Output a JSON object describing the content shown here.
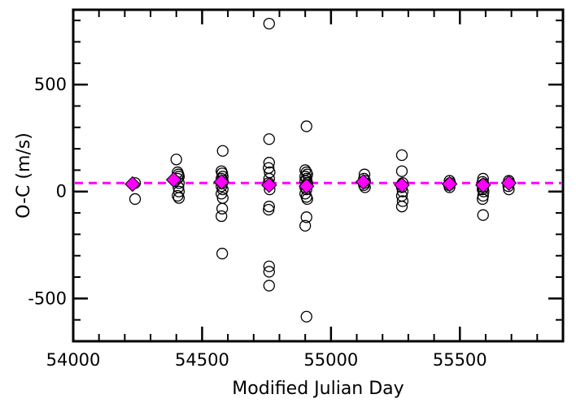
{
  "chart_data": {
    "type": "scatter",
    "title": "",
    "xlabel": "Modified Julian Day",
    "ylabel": "O-C (m/s)",
    "xlim": [
      54000,
      55900
    ],
    "ylim": [
      -700,
      850
    ],
    "x_ticks": [
      54000,
      54500,
      55000,
      55500
    ],
    "x_tick_labels": [
      "54000",
      "54500",
      "55000",
      "55500"
    ],
    "y_ticks": [
      -500,
      0,
      500
    ],
    "y_tick_labels": [
      "-500",
      "0",
      "500"
    ],
    "grid": false,
    "legend": "none",
    "reference_line": {
      "y": 40,
      "style": "dashed",
      "color": "#ff00ff"
    },
    "series": [
      {
        "marker": "open-circle",
        "color": "#000000",
        "points": [
          [
            54240,
            40
          ],
          [
            54240,
            -35
          ],
          [
            54395,
            50
          ],
          [
            54400,
            150
          ],
          [
            54405,
            90
          ],
          [
            54408,
            80
          ],
          [
            54410,
            70
          ],
          [
            54405,
            60
          ],
          [
            54410,
            40
          ],
          [
            54408,
            20
          ],
          [
            54410,
            0
          ],
          [
            54405,
            -20
          ],
          [
            54410,
            -30
          ],
          [
            54580,
            190
          ],
          [
            54575,
            95
          ],
          [
            54578,
            85
          ],
          [
            54580,
            70
          ],
          [
            54575,
            60
          ],
          [
            54580,
            50
          ],
          [
            54578,
            40
          ],
          [
            54575,
            25
          ],
          [
            54580,
            10
          ],
          [
            54575,
            -10
          ],
          [
            54580,
            -30
          ],
          [
            54578,
            -80
          ],
          [
            54575,
            -115
          ],
          [
            54578,
            -290
          ],
          [
            54760,
            785
          ],
          [
            54760,
            245
          ],
          [
            54760,
            135
          ],
          [
            54758,
            110
          ],
          [
            54762,
            90
          ],
          [
            54760,
            60
          ],
          [
            54758,
            40
          ],
          [
            54760,
            30
          ],
          [
            54762,
            10
          ],
          [
            54760,
            -70
          ],
          [
            54758,
            -85
          ],
          [
            54760,
            -350
          ],
          [
            54760,
            -375
          ],
          [
            54760,
            -440
          ],
          [
            54905,
            305
          ],
          [
            54900,
            100
          ],
          [
            54905,
            90
          ],
          [
            54908,
            80
          ],
          [
            54900,
            70
          ],
          [
            54905,
            60
          ],
          [
            54900,
            50
          ],
          [
            54908,
            40
          ],
          [
            54905,
            30
          ],
          [
            54900,
            20
          ],
          [
            54905,
            10
          ],
          [
            54900,
            -10
          ],
          [
            54905,
            -25
          ],
          [
            54908,
            -35
          ],
          [
            54905,
            -120
          ],
          [
            54900,
            -160
          ],
          [
            54905,
            -585
          ],
          [
            55130,
            80
          ],
          [
            55128,
            60
          ],
          [
            55132,
            50
          ],
          [
            55130,
            40
          ],
          [
            55128,
            30
          ],
          [
            55132,
            20
          ],
          [
            55275,
            170
          ],
          [
            55275,
            95
          ],
          [
            55278,
            40
          ],
          [
            55275,
            20
          ],
          [
            55278,
            0
          ],
          [
            55275,
            -20
          ],
          [
            55278,
            -45
          ],
          [
            55275,
            -70
          ],
          [
            55460,
            50
          ],
          [
            55462,
            40
          ],
          [
            55458,
            30
          ],
          [
            55460,
            20
          ],
          [
            55590,
            60
          ],
          [
            55588,
            45
          ],
          [
            55592,
            35
          ],
          [
            55590,
            20
          ],
          [
            55588,
            10
          ],
          [
            55592,
            0
          ],
          [
            55590,
            -20
          ],
          [
            55588,
            -35
          ],
          [
            55590,
            -110
          ],
          [
            55690,
            50
          ],
          [
            55692,
            40
          ],
          [
            55688,
            25
          ],
          [
            55690,
            10
          ]
        ]
      },
      {
        "marker": "filled-diamond",
        "color": "#ff00ff",
        "points": [
          [
            54230,
            35
          ],
          [
            54390,
            55
          ],
          [
            54575,
            45
          ],
          [
            54760,
            30
          ],
          [
            54905,
            25
          ],
          [
            55125,
            45
          ],
          [
            55275,
            30
          ],
          [
            55460,
            35
          ],
          [
            55590,
            30
          ],
          [
            55690,
            40
          ]
        ]
      }
    ]
  }
}
